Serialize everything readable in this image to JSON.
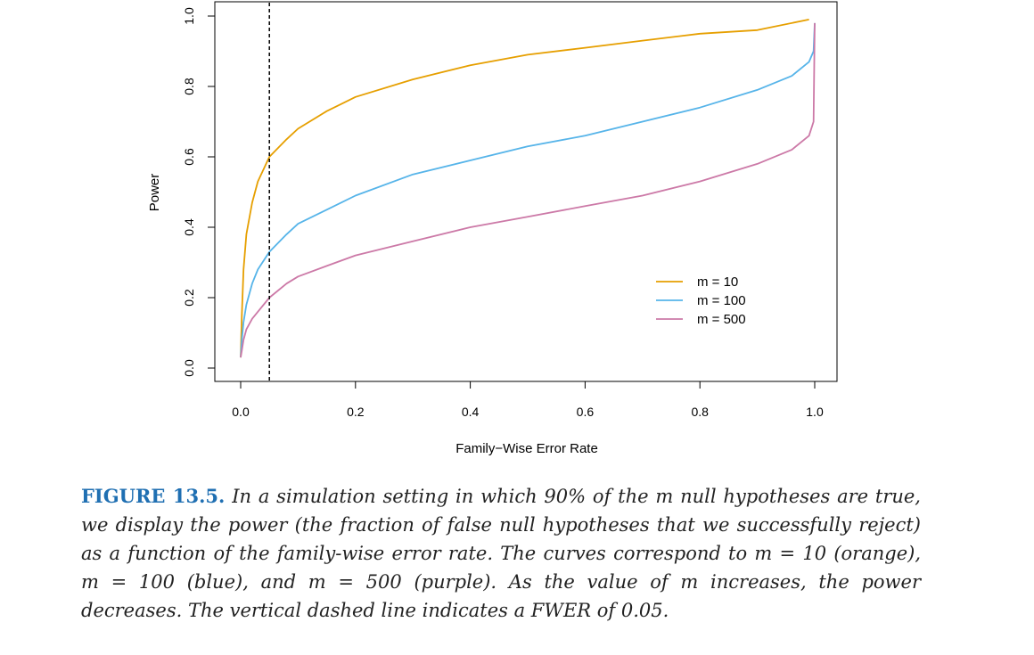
{
  "chart_data": {
    "type": "line",
    "xlabel": "Family−Wise Error Rate",
    "ylabel": "Power",
    "xlim": [
      0,
      1
    ],
    "ylim": [
      0,
      1
    ],
    "x_ticks": [
      "0.0",
      "0.2",
      "0.4",
      "0.6",
      "0.8",
      "1.0"
    ],
    "y_ticks": [
      "0.0",
      "0.2",
      "0.4",
      "0.6",
      "0.8",
      "1.0"
    ],
    "reference_line": {
      "x": 0.05,
      "style": "dashed",
      "label": "FWER of 0.05"
    },
    "legend_position": "bottom-right",
    "series": [
      {
        "name": "m = 10",
        "color": "#e69f00",
        "points": [
          [
            0.0,
            0.03
          ],
          [
            0.002,
            0.15
          ],
          [
            0.005,
            0.28
          ],
          [
            0.01,
            0.38
          ],
          [
            0.02,
            0.47
          ],
          [
            0.03,
            0.53
          ],
          [
            0.05,
            0.6
          ],
          [
            0.08,
            0.65
          ],
          [
            0.1,
            0.68
          ],
          [
            0.15,
            0.73
          ],
          [
            0.2,
            0.77
          ],
          [
            0.3,
            0.82
          ],
          [
            0.4,
            0.86
          ],
          [
            0.5,
            0.89
          ],
          [
            0.6,
            0.91
          ],
          [
            0.7,
            0.93
          ],
          [
            0.8,
            0.95
          ],
          [
            0.9,
            0.96
          ],
          [
            0.99,
            0.99
          ]
        ]
      },
      {
        "name": "m = 100",
        "color": "#56b4e9",
        "points": [
          [
            0.0,
            0.03
          ],
          [
            0.002,
            0.08
          ],
          [
            0.005,
            0.13
          ],
          [
            0.01,
            0.18
          ],
          [
            0.02,
            0.24
          ],
          [
            0.03,
            0.28
          ],
          [
            0.05,
            0.33
          ],
          [
            0.08,
            0.38
          ],
          [
            0.1,
            0.41
          ],
          [
            0.15,
            0.45
          ],
          [
            0.2,
            0.49
          ],
          [
            0.3,
            0.55
          ],
          [
            0.4,
            0.59
          ],
          [
            0.5,
            0.63
          ],
          [
            0.6,
            0.66
          ],
          [
            0.7,
            0.7
          ],
          [
            0.8,
            0.74
          ],
          [
            0.9,
            0.79
          ],
          [
            0.96,
            0.83
          ],
          [
            0.99,
            0.87
          ],
          [
            0.998,
            0.9
          ],
          [
            1.0,
            0.98
          ]
        ]
      },
      {
        "name": "m = 500",
        "color": "#cc79a7",
        "points": [
          [
            0.0,
            0.03
          ],
          [
            0.002,
            0.05
          ],
          [
            0.005,
            0.08
          ],
          [
            0.01,
            0.11
          ],
          [
            0.02,
            0.14
          ],
          [
            0.03,
            0.16
          ],
          [
            0.05,
            0.2
          ],
          [
            0.08,
            0.24
          ],
          [
            0.1,
            0.26
          ],
          [
            0.15,
            0.29
          ],
          [
            0.2,
            0.32
          ],
          [
            0.3,
            0.36
          ],
          [
            0.4,
            0.4
          ],
          [
            0.5,
            0.43
          ],
          [
            0.6,
            0.46
          ],
          [
            0.7,
            0.49
          ],
          [
            0.8,
            0.53
          ],
          [
            0.9,
            0.58
          ],
          [
            0.96,
            0.62
          ],
          [
            0.99,
            0.66
          ],
          [
            0.998,
            0.7
          ],
          [
            1.0,
            0.98
          ]
        ]
      }
    ]
  },
  "caption": {
    "label": "FIGURE 13.5.",
    "text": "In a simulation setting in which 90% of the m null hypotheses are true, we display the power (the fraction of false null hypotheses that we successfully reject) as a function of the family-wise error rate. The curves correspond to m = 10 (orange), m = 100 (blue), and m = 500 (purple). As the value of m increases, the power decreases. The vertical dashed line indicates a FWER of 0.05."
  }
}
